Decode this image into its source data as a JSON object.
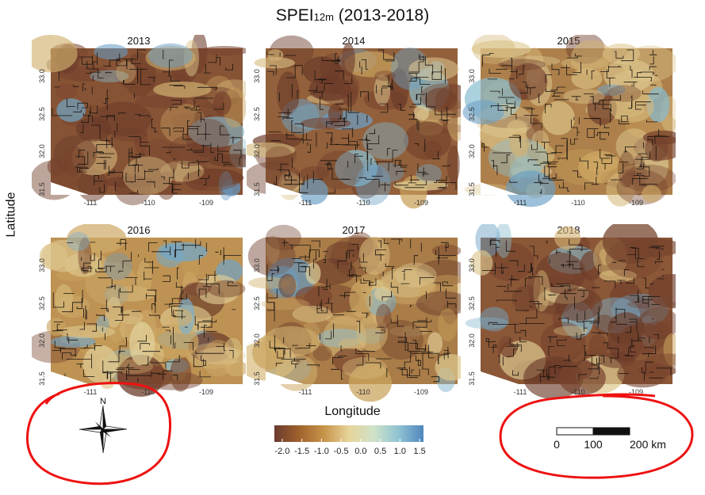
{
  "title_main": "SPEI",
  "title_sub": "12m",
  "title_years": "(2013-2018)",
  "ylabel": "Latitude",
  "xlabel": "Longitude",
  "panels": [
    {
      "year": "2013",
      "lat_ticks": [
        "33.0",
        "32.5",
        "32.0",
        "31.5"
      ],
      "lon_ticks": [
        "-111",
        "-110",
        "-109"
      ],
      "dryness": 0.85
    },
    {
      "year": "2014",
      "lat_ticks": [
        "33.0",
        "32.5",
        "32.0",
        "31.5"
      ],
      "lon_ticks": [
        "-111",
        "-110",
        "-109"
      ],
      "dryness": 0.7
    },
    {
      "year": "2015",
      "lat_ticks": [
        "33.0",
        "32.5",
        "32.0",
        "31.5"
      ],
      "lon_ticks": [
        "-111",
        "-110",
        "-109"
      ],
      "dryness": 0.35
    },
    {
      "year": "2016",
      "lat_ticks": [
        "33.0",
        "32.5",
        "32.0",
        "31.5"
      ],
      "lon_ticks": [
        "-111",
        "-110",
        "-109"
      ],
      "dryness": 0.15
    },
    {
      "year": "2017",
      "lat_ticks": [
        "33.0",
        "32.5",
        "32.0",
        "31.5"
      ],
      "lon_ticks": [
        "-111",
        "-110",
        "-109"
      ],
      "dryness": 0.4
    },
    {
      "year": "2018",
      "lat_ticks": [
        "33.0",
        "32.5",
        "32.0",
        "31.5"
      ],
      "lon_ticks": [
        "-111",
        "-110",
        "-109"
      ],
      "dryness": 0.8
    }
  ],
  "colorbar": {
    "ticks": [
      "-2.0",
      "-1.5",
      "-1.0",
      "-0.5",
      "0.0",
      "0.5",
      "1.0",
      "1.5"
    ],
    "colors": [
      "#6a3a2e",
      "#a0622c",
      "#c8944a",
      "#e6d49a",
      "#cfe2c8",
      "#8fc3d2",
      "#4f86bd"
    ]
  },
  "north_label": "N",
  "scalebar": {
    "labels": [
      "0",
      "100",
      "200 km"
    ]
  },
  "annotation_color": "#ee1111"
}
